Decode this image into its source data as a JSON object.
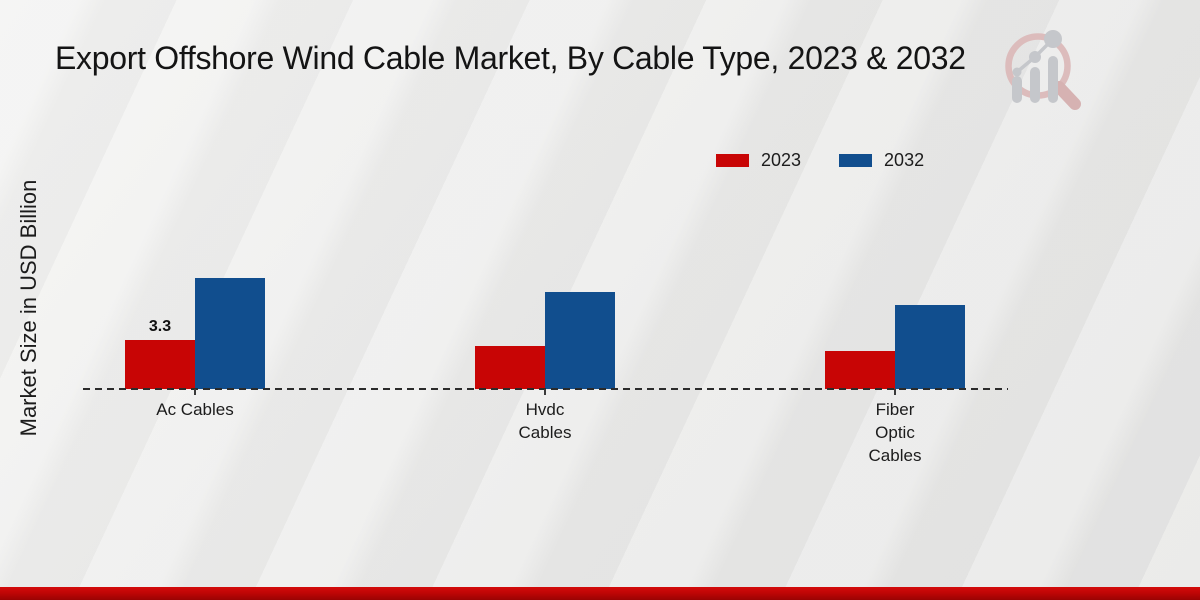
{
  "header": {
    "title": "Export Offshore Wind Cable Market, By Cable Type, 2023 & 2032"
  },
  "y_axis": {
    "label": "Market Size in USD Billion"
  },
  "logo": {
    "icon": "magnifier-bar-chart-logo"
  },
  "footer": {
    "band_color": "#c00606"
  },
  "chart_data": {
    "type": "bar",
    "title": "Export Offshore Wind Cable Market, By Cable Type, 2023 & 2032",
    "xlabel": "",
    "ylabel": "Market Size in USD Billion",
    "categories": [
      "Ac Cables",
      "Hvdc Cables",
      "Fiber Optic Cables"
    ],
    "category_label_lines": [
      [
        "Ac Cables"
      ],
      [
        "Hvdc",
        "Cables"
      ],
      [
        "Fiber",
        "Optic",
        "Cables"
      ]
    ],
    "series": [
      {
        "name": "2023",
        "color": "#c80505",
        "values": [
          3.3,
          2.9,
          2.6
        ]
      },
      {
        "name": "2032",
        "color": "#114e8e",
        "values": [
          7.5,
          6.6,
          5.7
        ]
      }
    ],
    "annotations": [
      {
        "series": "2023",
        "category": "Ac Cables",
        "text": "3.3"
      }
    ],
    "ylim": [
      0,
      8.5
    ],
    "grid": false,
    "baseline_style": "dashed",
    "legend_position": "top-right",
    "y_axis_ticks_visible": false
  }
}
